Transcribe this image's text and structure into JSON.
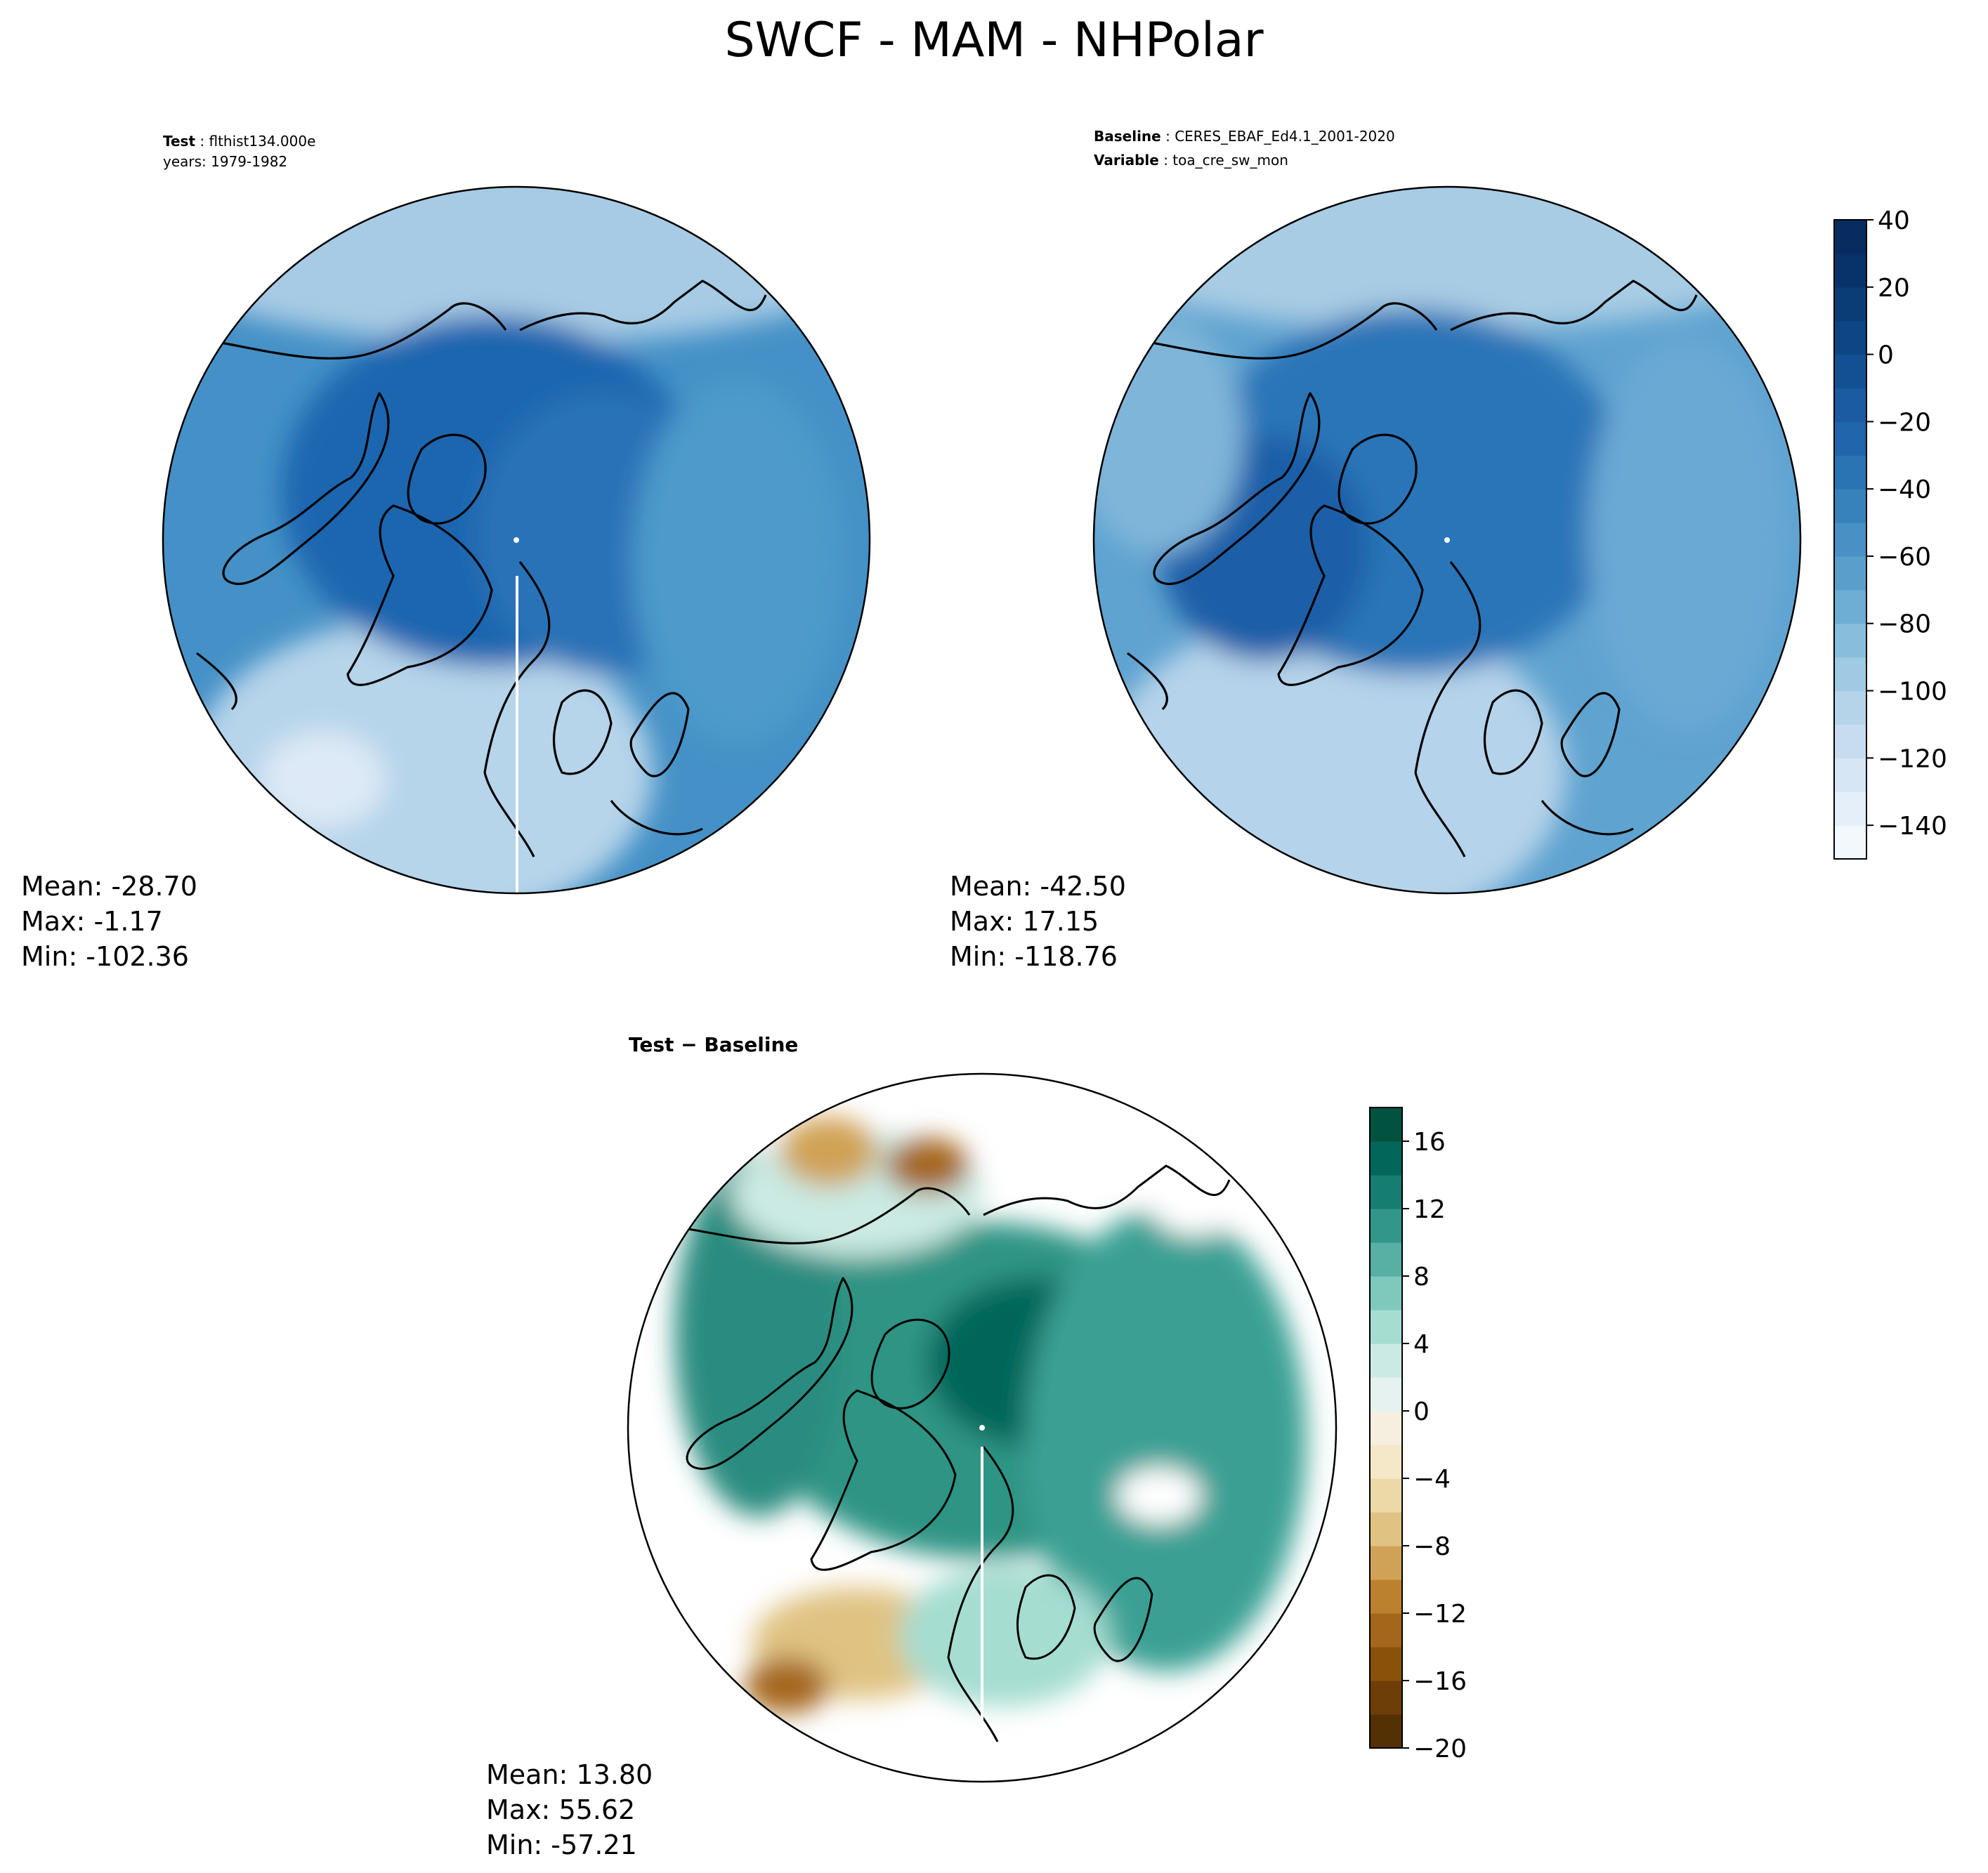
{
  "figure": {
    "title": "SWCF - MAM - NHPolar"
  },
  "panels": {
    "test": {
      "label_bold": "Test",
      "label_value": "flthist134.000e",
      "line2": "years: 1979-1982",
      "mean": "Mean: -28.70",
      "max": "Max: -1.17",
      "min": "Min: -102.36"
    },
    "baseline": {
      "label_bold": "Baseline",
      "label_value": "CERES_EBAF_Ed4.1_2001-2020",
      "line2_bold": "Variable",
      "line2_value": "toa_cre_sw_mon",
      "mean": "Mean: -42.50",
      "max": "Max: 17.15",
      "min": "Min: -118.76"
    },
    "diff": {
      "label_bold": "Test − Baseline",
      "mean": "Mean: 13.80",
      "max": "Max: 55.62",
      "min": "Min: -57.21"
    }
  },
  "chart_data": [
    {
      "type": "heatmap",
      "projection": "north-polar-stereographic",
      "subtitle": "Test : flthist134.000e",
      "stats": {
        "mean": -28.7,
        "max": -1.17,
        "min": -102.36
      },
      "colormap": "Blues",
      "colorbar": "shared"
    },
    {
      "type": "heatmap",
      "projection": "north-polar-stereographic",
      "subtitle": "Baseline : CERES_EBAF_Ed4.1_2001-2020",
      "stats": {
        "mean": -42.5,
        "max": 17.15,
        "min": -118.76
      },
      "colormap": "Blues",
      "colorbar": {
        "range": [
          -150,
          40
        ],
        "ticks": [
          40,
          20,
          0,
          -20,
          -40,
          -60,
          -80,
          -100,
          -120,
          -140
        ],
        "tick_labels": [
          "40",
          "20",
          "0",
          "−20",
          "−40",
          "−60",
          "−80",
          "−100",
          "−120",
          "−140"
        ],
        "colors": [
          "#f3f8fd",
          "#e4eff9",
          "#d6e6f4",
          "#c7dcef",
          "#b5d4e9",
          "#a0cae3",
          "#88bedc",
          "#6eaed4",
          "#5a9fcc",
          "#4791c4",
          "#3882bc",
          "#2b74b3",
          "#2066ac",
          "#1a5ba1",
          "#125093",
          "#0d4585",
          "#0a3c76",
          "#08336a",
          "#082c60"
        ]
      }
    },
    {
      "type": "heatmap",
      "projection": "north-polar-stereographic",
      "subtitle": "Test − Baseline",
      "stats": {
        "mean": 13.8,
        "max": 55.62,
        "min": -57.21
      },
      "colormap": "BrBG",
      "colorbar": {
        "range": [
          -20,
          18
        ],
        "ticks": [
          16,
          12,
          8,
          4,
          0,
          -4,
          -8,
          -12,
          -16,
          -20
        ],
        "tick_labels": [
          "16",
          "12",
          "8",
          "4",
          "0",
          "−4",
          "−8",
          "−12",
          "−16",
          "−20"
        ],
        "colors": [
          "#543005",
          "#6e3e08",
          "#8a510b",
          "#a4661a",
          "#bc812f",
          "#d0a257",
          "#e0c383",
          "#ecd9a7",
          "#f5e8c8",
          "#f6efe0",
          "#e5f2ef",
          "#cbeae3",
          "#a5ddd1",
          "#7ec9bb",
          "#57b0a3",
          "#32968a",
          "#157d71",
          "#02665a",
          "#01533f"
        ]
      }
    }
  ]
}
